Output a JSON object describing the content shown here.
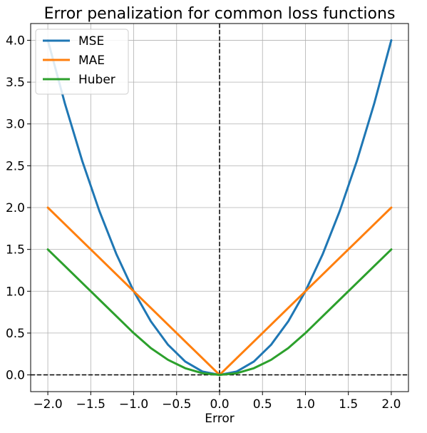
{
  "chart_data": {
    "type": "line",
    "title": "Error penalization for common loss functions",
    "xlabel": "Error",
    "ylabel": "",
    "xlim": [
      -2.2,
      2.2
    ],
    "ylim": [
      -0.2,
      4.2
    ],
    "xticks": [
      "−2.0",
      "−1.5",
      "−1.0",
      "−0.5",
      "0.0",
      "0.5",
      "1.0",
      "1.5",
      "2.0"
    ],
    "yticks": [
      "0.0",
      "0.5",
      "1.0",
      "1.5",
      "2.0",
      "2.5",
      "3.0",
      "3.5",
      "4.0"
    ],
    "grid": true,
    "legend_position": "top-left",
    "reference_lines": {
      "x": 0,
      "y": 0,
      "style": "dashed",
      "color": "#000000"
    },
    "x": [
      -2.0,
      -1.8,
      -1.6,
      -1.4,
      -1.2,
      -1.0,
      -0.8,
      -0.6,
      -0.4,
      -0.2,
      0.0,
      0.2,
      0.4,
      0.6,
      0.8,
      1.0,
      1.2,
      1.4,
      1.6,
      1.8,
      2.0
    ],
    "series": [
      {
        "name": "MSE",
        "color": "#1f77b4",
        "values": [
          4.0,
          3.24,
          2.56,
          1.96,
          1.44,
          1.0,
          0.64,
          0.36,
          0.16,
          0.04,
          0.0,
          0.04,
          0.16,
          0.36,
          0.64,
          1.0,
          1.44,
          1.96,
          2.56,
          3.24,
          4.0
        ]
      },
      {
        "name": "MAE",
        "color": "#ff7f0e",
        "values": [
          2.0,
          1.8,
          1.6,
          1.4,
          1.2,
          1.0,
          0.8,
          0.6,
          0.4,
          0.2,
          0.0,
          0.2,
          0.4,
          0.6,
          0.8,
          1.0,
          1.2,
          1.4,
          1.6,
          1.8,
          2.0
        ]
      },
      {
        "name": "Huber",
        "color": "#2ca02c",
        "values": [
          1.5,
          1.3,
          1.1,
          0.9,
          0.7,
          0.5,
          0.32,
          0.18,
          0.08,
          0.02,
          0.0,
          0.02,
          0.08,
          0.18,
          0.32,
          0.5,
          0.7,
          0.9,
          1.1,
          1.3,
          1.5
        ]
      }
    ]
  }
}
